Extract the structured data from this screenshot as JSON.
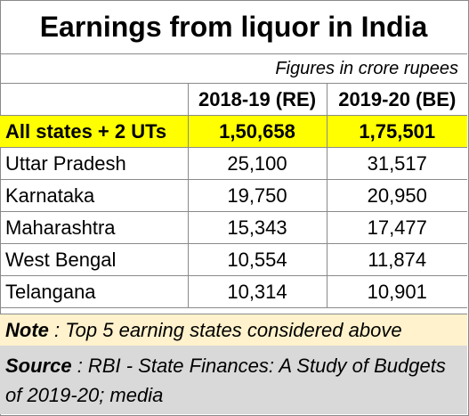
{
  "chart_data": {
    "type": "table",
    "title": "Earnings from liquor in India",
    "subtitle": "Figures in crore rupees",
    "columns": [
      "",
      "2018-19 (RE)",
      "2019-20 (BE)"
    ],
    "total": {
      "label": "All states + 2 UTs",
      "v2018": "1,50,658",
      "v2019": "1,75,501"
    },
    "rows": [
      {
        "state": "Uttar Pradesh",
        "v2018": "25,100",
        "v2019": "31,517"
      },
      {
        "state": "Karnataka",
        "v2018": "19,750",
        "v2019": "20,950"
      },
      {
        "state": "Maharashtra",
        "v2018": "15,343",
        "v2019": "17,477"
      },
      {
        "state": "West Bengal",
        "v2018": "10,554",
        "v2019": "11,874"
      },
      {
        "state": "Telangana",
        "v2018": "10,314",
        "v2019": "10,901"
      }
    ],
    "note_label": "Note",
    "note_text": " : Top 5 earning states  considered above",
    "source_label": "Source",
    "source_text": " : RBI - State Finances: A Study of Budgets of 2019-20; media",
    "colors": {
      "total_row": "#ffff00",
      "note_bg": "#fff2cc",
      "source_bg": "#d9d9d9",
      "border": "#8a8a8a"
    }
  }
}
